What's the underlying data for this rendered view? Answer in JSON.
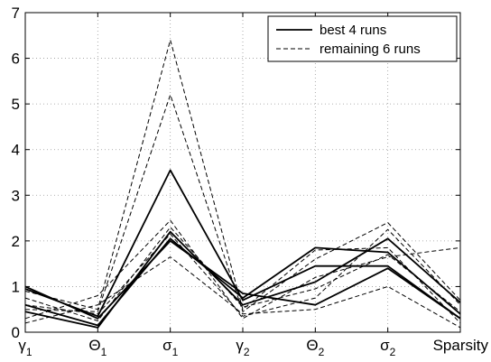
{
  "chart_data": {
    "type": "line",
    "categories": [
      {
        "base": "γ",
        "sub": "1"
      },
      {
        "base": "Θ",
        "sub": "1"
      },
      {
        "base": "σ",
        "sub": "1"
      },
      {
        "base": "γ",
        "sub": "2"
      },
      {
        "base": "Θ",
        "sub": "2"
      },
      {
        "base": "σ",
        "sub": "2"
      },
      {
        "base": "Sparsity",
        "sub": ""
      }
    ],
    "ylim": [
      0,
      7
    ],
    "yticks": [
      0,
      1,
      2,
      3,
      4,
      5,
      6,
      7
    ],
    "grid": true,
    "legend": {
      "position": "top-right",
      "entries": [
        {
          "label": "best 4 runs",
          "style": "solid"
        },
        {
          "label": "remaining 6 runs",
          "style": "dashed"
        }
      ]
    },
    "series": [
      {
        "group": "best",
        "style": "solid",
        "values": [
          0.95,
          0.35,
          3.55,
          0.7,
          1.45,
          1.45,
          0.3
        ]
      },
      {
        "group": "best",
        "style": "solid",
        "values": [
          0.6,
          0.15,
          2.05,
          0.75,
          1.85,
          1.75,
          0.4
        ]
      },
      {
        "group": "best",
        "style": "solid",
        "values": [
          0.45,
          0.1,
          2.2,
          0.6,
          1.1,
          2.05,
          0.65
        ]
      },
      {
        "group": "best",
        "style": "solid",
        "values": [
          1.0,
          0.3,
          2.0,
          0.85,
          0.6,
          1.4,
          0.3
        ]
      },
      {
        "group": "remaining",
        "style": "dashed",
        "values": [
          0.9,
          0.5,
          6.4,
          0.5,
          1.8,
          1.85,
          0.2
        ]
      },
      {
        "group": "remaining",
        "style": "dashed",
        "values": [
          0.5,
          0.45,
          5.2,
          0.45,
          1.6,
          2.4,
          0.7
        ]
      },
      {
        "group": "remaining",
        "style": "dashed",
        "values": [
          0.3,
          0.8,
          2.45,
          0.3,
          1.2,
          1.65,
          1.85
        ]
      },
      {
        "group": "remaining",
        "style": "dashed",
        "values": [
          0.75,
          0.25,
          2.3,
          0.55,
          0.95,
          1.7,
          0.45
        ]
      },
      {
        "group": "remaining",
        "style": "dashed",
        "values": [
          0.2,
          0.6,
          1.65,
          0.4,
          0.5,
          1.0,
          0.1
        ]
      },
      {
        "group": "remaining",
        "style": "dashed",
        "values": [
          0.6,
          0.4,
          2.15,
          0.35,
          0.75,
          2.25,
          0.6
        ]
      }
    ]
  }
}
